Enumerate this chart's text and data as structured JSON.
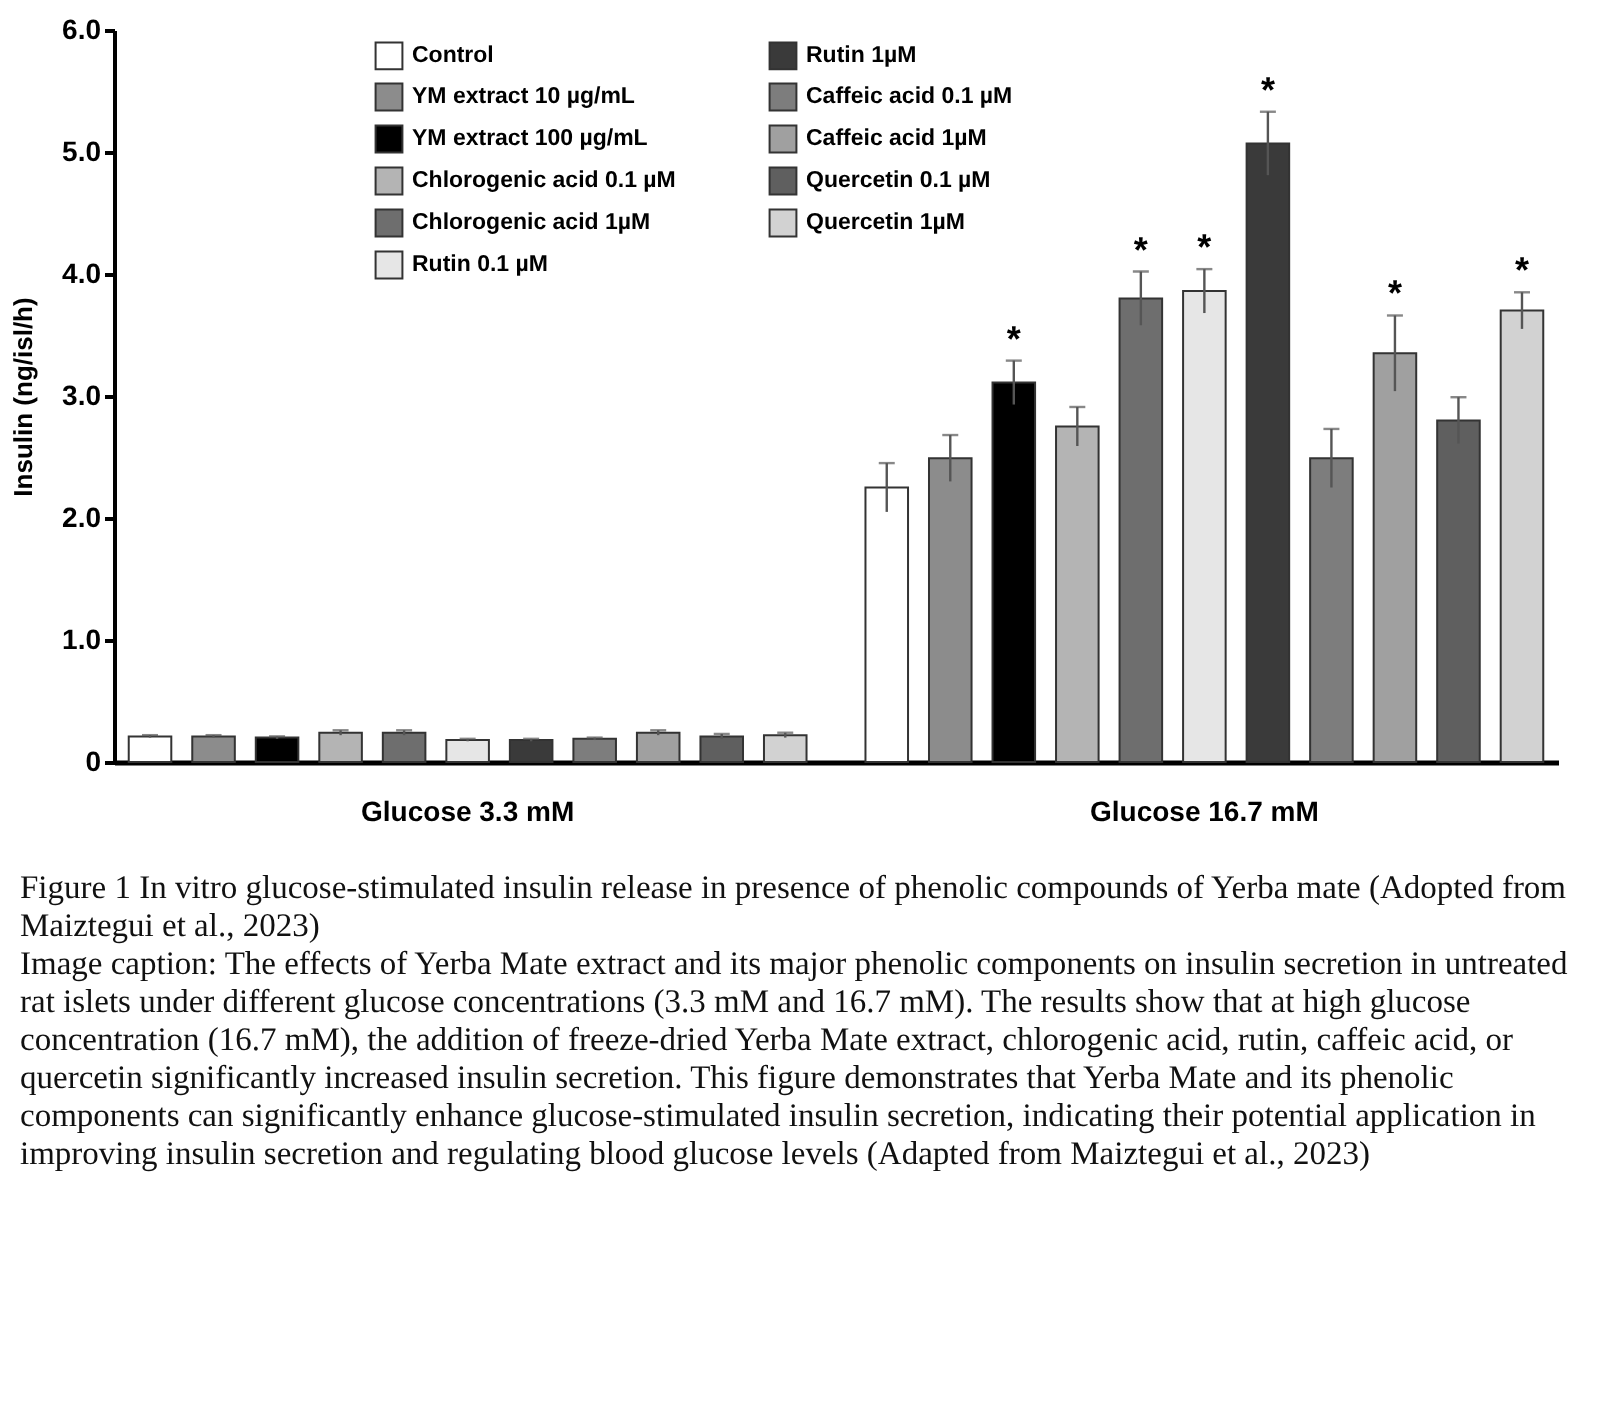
{
  "chart_data": {
    "type": "bar",
    "ylabel": "Insulin  (ng/isl/h)",
    "categories": [
      "Glucose 3.3 mM",
      "Glucose 16.7 mM"
    ],
    "ylim": [
      0,
      6
    ],
    "yticks": [
      0,
      {
        "value": 1,
        "label": "1.0"
      },
      {
        "value": 2,
        "label": "2.0"
      },
      {
        "value": 3,
        "label": "3.0"
      },
      {
        "value": 4,
        "label": "4.0"
      },
      {
        "value": 5,
        "label": "5.0"
      },
      {
        "value": 6,
        "label": "6.0"
      }
    ],
    "legend": "top",
    "grid": false,
    "series": [
      {
        "name": "Control",
        "color": "#ffffff",
        "values": [
          0.21,
          2.25
        ],
        "errors": [
          0.01,
          0.2
        ]
      },
      {
        "name": "YM extract 10 µg/mL",
        "color": "#8c8c8c",
        "values": [
          0.21,
          2.49
        ],
        "errors": [
          0.01,
          0.19
        ]
      },
      {
        "name": "YM extract 100 µg/mL",
        "color": "#000000",
        "values": [
          0.2,
          3.11
        ],
        "errors": [
          0.01,
          0.18
        ],
        "value_labels": [
          null,
          "*"
        ]
      },
      {
        "name": "Chlorogenic acid  0.1 µM",
        "color": "#b4b4b4",
        "values": [
          0.24,
          2.75
        ],
        "errors": [
          0.02,
          0.16
        ]
      },
      {
        "name": "Chlorogenic acid 1µM",
        "color": "#6e6e6e",
        "values": [
          0.24,
          3.8
        ],
        "errors": [
          0.02,
          0.22
        ],
        "value_labels": [
          null,
          "*"
        ]
      },
      {
        "name": "Rutin 0.1 µM",
        "color": "#e6e6e6",
        "values": [
          0.18,
          3.86
        ],
        "errors": [
          0.01,
          0.18
        ],
        "value_labels": [
          null,
          "*"
        ]
      },
      {
        "name": "Rutin 1µM",
        "color": "#3a3a3a",
        "values": [
          0.18,
          5.07
        ],
        "errors": [
          0.01,
          0.26
        ],
        "value_labels": [
          null,
          "*"
        ]
      },
      {
        "name": "Caffeic acid 0.1 µM",
        "color": "#7d7d7d",
        "values": [
          0.19,
          2.49
        ],
        "errors": [
          0.01,
          0.24
        ]
      },
      {
        "name": "Caffeic acid 1µM",
        "color": "#a0a0a0",
        "values": [
          0.24,
          3.35
        ],
        "errors": [
          0.02,
          0.31
        ],
        "value_labels": [
          null,
          "*"
        ]
      },
      {
        "name": "Quercetin 0.1 µM",
        "color": "#5f5f5f",
        "values": [
          0.21,
          2.8
        ],
        "errors": [
          0.02,
          0.19
        ]
      },
      {
        "name": "Quercetin 1µM",
        "color": "#d2d2d2",
        "values": [
          0.22,
          3.7
        ],
        "errors": [
          0.02,
          0.15
        ],
        "value_labels": [
          null,
          "*"
        ]
      }
    ],
    "annotations": [
      "Figure 1 In vitro glucose-stimulated insulin release in presence of phenolic compounds of Yerba mate (Adopted from Maiztegui et al., 2023)",
      "Image caption: The effects of Yerba Mate extract and its major phenolic components on insulin secretion in untreated rat islets under different glucose concentrations (3.3 mM and 16.7 mM). The results show that at high glucose concentration (16.7 mM), the addition of freeze-dried Yerba Mate extract, chlorogenic acid, rutin, caffeic acid, or quercetin significantly increased insulin secretion. This figure demonstrates that Yerba Mate and its phenolic components can significantly enhance glucose-stimulated insulin secretion, indicating their potential application in improving insulin secretion and regulating blood glucose levels (Adapted from Maiztegui et al., 2023)"
    ]
  }
}
